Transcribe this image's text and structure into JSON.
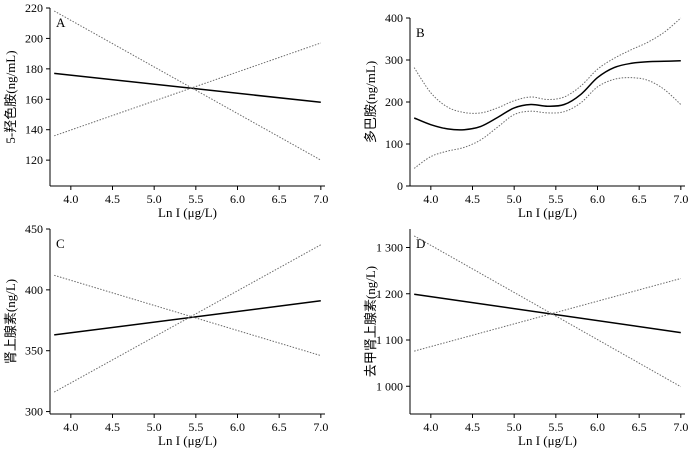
{
  "chart_data": [
    {
      "type": "line",
      "panel_label": "A",
      "xlabel": "Ln I (μg/L)",
      "ylabel": "5-羟色胺(ng/mL)",
      "xlim": [
        3.75,
        7.05
      ],
      "ylim": [
        103,
        220
      ],
      "xticks": [
        "4.0",
        "4.5",
        "5.0",
        "5.5",
        "6.0",
        "6.5",
        "7.0"
      ],
      "yticks": [
        "120",
        "140",
        "160",
        "180",
        "200",
        "220"
      ],
      "series": [
        {
          "name": "estimate",
          "style": "solid",
          "x": [
            3.8,
            7.0
          ],
          "y": [
            177,
            158
          ]
        },
        {
          "name": "upper CI",
          "style": "dotted",
          "x": [
            3.8,
            7.0
          ],
          "y": [
            136,
            197
          ]
        },
        {
          "name": "lower CI",
          "style": "dotted",
          "x": [
            3.8,
            7.0
          ],
          "y": [
            218,
            120
          ]
        }
      ]
    },
    {
      "type": "line",
      "panel_label": "B",
      "xlabel": "Ln I (μg/L)",
      "ylabel": "多巴胺(ng/mL)",
      "xlim": [
        3.75,
        7.05
      ],
      "ylim": [
        0,
        400
      ],
      "xticks": [
        "4.0",
        "4.5",
        "5.0",
        "5.5",
        "6.0",
        "6.5",
        "7.0"
      ],
      "yticks": [
        "0",
        "100",
        "200",
        "300",
        "400"
      ],
      "series": [
        {
          "name": "estimate",
          "style": "solid",
          "x": [
            3.8,
            4.0,
            4.2,
            4.4,
            4.6,
            4.8,
            5.0,
            5.2,
            5.4,
            5.6,
            5.8,
            6.0,
            6.2,
            6.4,
            6.6,
            6.8,
            7.0
          ],
          "y": [
            162,
            146,
            136,
            134,
            142,
            163,
            186,
            194,
            190,
            194,
            218,
            258,
            282,
            292,
            296,
            297,
            298
          ]
        },
        {
          "name": "upper CI",
          "style": "dotted",
          "x": [
            3.8,
            4.0,
            4.2,
            4.4,
            4.6,
            4.8,
            5.0,
            5.2,
            5.4,
            5.6,
            5.8,
            6.0,
            6.2,
            6.4,
            6.6,
            6.8,
            7.0
          ],
          "y": [
            282,
            222,
            188,
            175,
            174,
            186,
            203,
            212,
            206,
            212,
            238,
            278,
            304,
            324,
            342,
            366,
            400
          ]
        },
        {
          "name": "lower CI",
          "style": "dotted",
          "x": [
            3.8,
            4.0,
            4.2,
            4.4,
            4.6,
            4.8,
            5.0,
            5.2,
            5.4,
            5.6,
            5.8,
            6.0,
            6.2,
            6.4,
            6.6,
            6.8,
            7.0
          ],
          "y": [
            42,
            70,
            83,
            92,
            110,
            140,
            170,
            178,
            174,
            177,
            198,
            236,
            254,
            258,
            252,
            230,
            194
          ]
        }
      ]
    },
    {
      "type": "line",
      "panel_label": "C",
      "xlabel": "Ln I (μg/L)",
      "ylabel": "肾上腺素(ng/L)",
      "xlim": [
        3.75,
        7.05
      ],
      "ylim": [
        298,
        450
      ],
      "xticks": [
        "4.0",
        "4.5",
        "5.0",
        "5.5",
        "6.0",
        "6.5",
        "7.0"
      ],
      "yticks": [
        "300",
        "350",
        "400",
        "450"
      ],
      "series": [
        {
          "name": "estimate",
          "style": "solid",
          "x": [
            3.8,
            7.0
          ],
          "y": [
            363,
            391
          ]
        },
        {
          "name": "upper CI",
          "style": "dotted",
          "x": [
            3.8,
            7.0
          ],
          "y": [
            316,
            437
          ]
        },
        {
          "name": "lower CI",
          "style": "dotted",
          "x": [
            3.8,
            7.0
          ],
          "y": [
            412,
            346
          ]
        }
      ]
    },
    {
      "type": "line",
      "panel_label": "D",
      "xlabel": "Ln I (μg/L)",
      "ylabel": "去甲肾上腺素(ng/L)",
      "xlim": [
        3.75,
        7.05
      ],
      "ylim": [
        940,
        1340
      ],
      "xticks": [
        "4.0",
        "4.5",
        "5.0",
        "5.5",
        "6.0",
        "6.5",
        "7.0"
      ],
      "yticks": [
        "1 000",
        "1 100",
        "1 200",
        "1 300"
      ],
      "ytick_values": [
        1000,
        1100,
        1200,
        1300
      ],
      "series": [
        {
          "name": "estimate",
          "style": "solid",
          "x": [
            3.8,
            7.0
          ],
          "y": [
            1199,
            1116
          ]
        },
        {
          "name": "upper CI",
          "style": "dotted",
          "x": [
            3.8,
            7.0
          ],
          "y": [
            1076,
            1233
          ]
        },
        {
          "name": "lower CI",
          "style": "dotted",
          "x": [
            3.8,
            7.0
          ],
          "y": [
            1325,
            999
          ]
        }
      ]
    }
  ]
}
